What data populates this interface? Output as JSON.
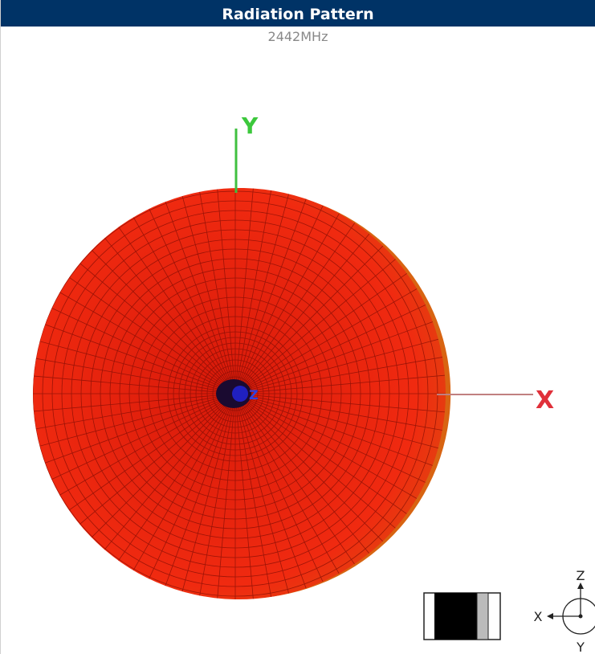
{
  "header": {
    "title": "Radiation Pattern",
    "subtitle": "2442MHz"
  },
  "pattern": {
    "axis_labels": {
      "y": "Y",
      "x": "X",
      "z": "Z"
    }
  },
  "orientation": {
    "z": "Z",
    "x": "X",
    "y": "Y"
  }
}
